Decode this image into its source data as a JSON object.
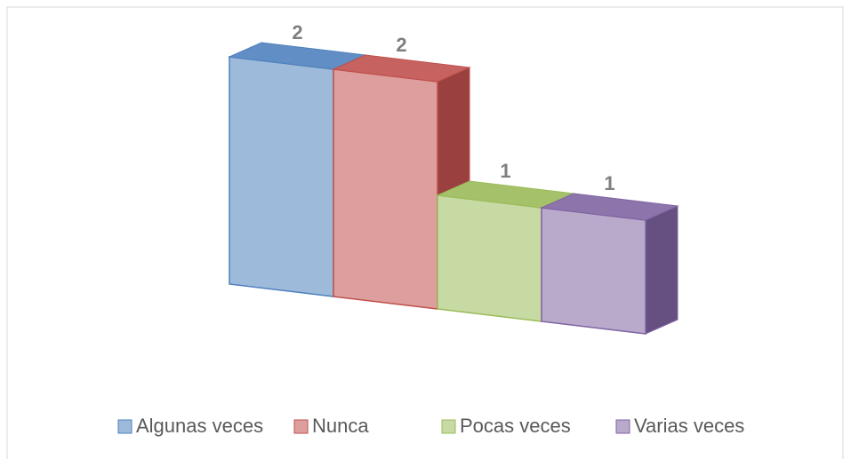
{
  "chart_data": {
    "type": "bar3d",
    "series": [
      {
        "name": "Algunas veces",
        "color": "#4f81bd",
        "values": [
          2
        ]
      },
      {
        "name": "Nunca",
        "color": "#c0504d",
        "values": [
          2
        ]
      },
      {
        "name": "Pocas veces",
        "color": "#9bbb59",
        "values": [
          1
        ]
      },
      {
        "name": "Varias veces",
        "color": "#8064a2",
        "values": [
          1
        ]
      }
    ],
    "data_labels": true,
    "legend": "bottom"
  }
}
